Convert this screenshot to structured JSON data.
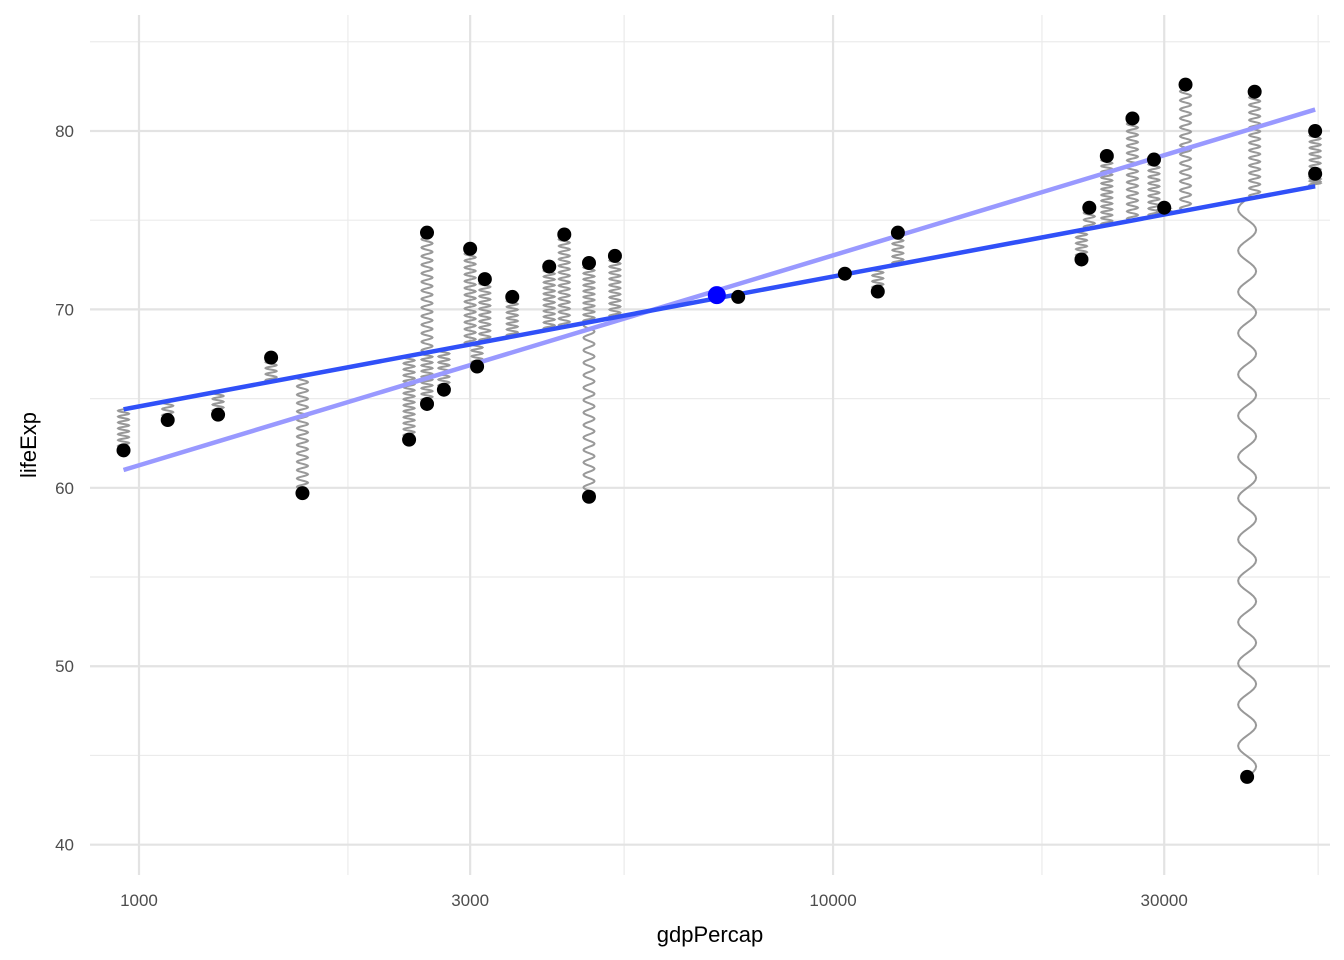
{
  "chart_data": {
    "type": "scatter",
    "title": "",
    "xlabel": "gdpPercap",
    "ylabel": "lifeExp",
    "x_scale": "log10",
    "xlim": [
      850,
      52000
    ],
    "ylim": [
      38.3,
      86.5
    ],
    "x_ticks": [
      1000,
      3000,
      10000,
      30000
    ],
    "x_tick_labels": [
      "1000",
      "3000",
      "10000",
      "30000"
    ],
    "x_minor_ticks": [
      2000,
      5000,
      20000,
      50000
    ],
    "y_ticks": [
      40,
      50,
      60,
      70,
      80
    ],
    "y_tick_labels": [
      "40",
      "50",
      "60",
      "70",
      "80"
    ],
    "y_minor_ticks": [
      45,
      55,
      65,
      75,
      85
    ],
    "grid": true,
    "legend": "none",
    "points": [
      {
        "x": 950,
        "y": 62.1
      },
      {
        "x": 1100,
        "y": 63.8
      },
      {
        "x": 1300,
        "y": 64.1
      },
      {
        "x": 1550,
        "y": 67.3
      },
      {
        "x": 1720,
        "y": 59.7
      },
      {
        "x": 2450,
        "y": 62.7
      },
      {
        "x": 2600,
        "y": 74.3
      },
      {
        "x": 2600,
        "y": 64.7
      },
      {
        "x": 2750,
        "y": 65.5
      },
      {
        "x": 3000,
        "y": 73.4
      },
      {
        "x": 3070,
        "y": 66.8
      },
      {
        "x": 3150,
        "y": 71.7
      },
      {
        "x": 3450,
        "y": 70.7
      },
      {
        "x": 3900,
        "y": 72.4
      },
      {
        "x": 4100,
        "y": 74.2
      },
      {
        "x": 4450,
        "y": 72.6
      },
      {
        "x": 4450,
        "y": 59.5
      },
      {
        "x": 4850,
        "y": 73.0
      },
      {
        "x": 7300,
        "y": 70.7
      },
      {
        "x": 10400,
        "y": 72.0
      },
      {
        "x": 11600,
        "y": 71.0
      },
      {
        "x": 12400,
        "y": 74.3
      },
      {
        "x": 22800,
        "y": 72.8
      },
      {
        "x": 23400,
        "y": 75.7
      },
      {
        "x": 24800,
        "y": 78.6
      },
      {
        "x": 27000,
        "y": 80.7
      },
      {
        "x": 29000,
        "y": 78.4
      },
      {
        "x": 30000,
        "y": 75.7
      },
      {
        "x": 32200,
        "y": 82.6
      },
      {
        "x": 39500,
        "y": 43.8
      },
      {
        "x": 40500,
        "y": 82.2
      },
      {
        "x": 49500,
        "y": 80.0
      },
      {
        "x": 49500,
        "y": 77.6
      }
    ],
    "centroid": {
      "x": 6800,
      "y": 70.8,
      "color": "#0000ff"
    },
    "fitted_lines": [
      {
        "x": [
          950,
          49500
        ],
        "y": [
          64.4,
          76.9
        ],
        "color": "#3050f8",
        "opacity": 1
      },
      {
        "x": [
          950,
          49500
        ],
        "y": [
          61.0,
          81.2
        ],
        "color": "#9999ff",
        "opacity": 1
      }
    ],
    "spring_color": "#999999",
    "point_color": "#000000"
  }
}
